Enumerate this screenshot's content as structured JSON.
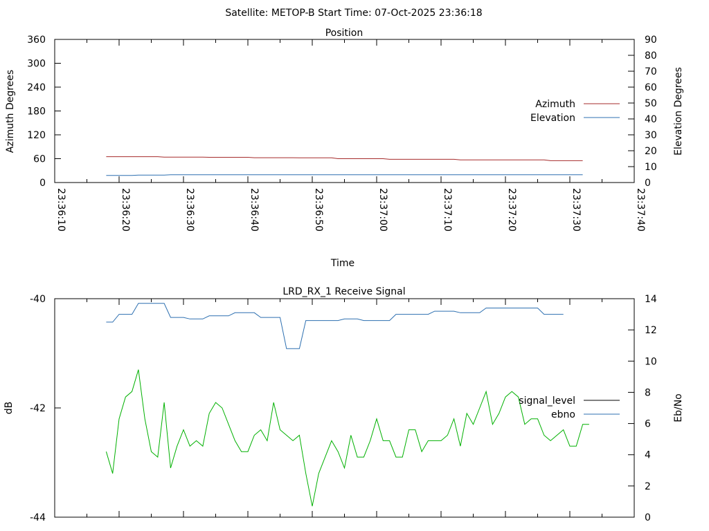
{
  "figure": {
    "title": "Satellite: METOP-B    Start Time: 07-Oct-2025 23:36:18"
  },
  "chart_data": [
    {
      "type": "line",
      "title": "Position",
      "xlabel": "Time",
      "ylabel": "Azimuth Degrees",
      "y2label": "Elevation Degrees",
      "x_range": [
        "23:36:10",
        "23:37:40"
      ],
      "x_tick_labels": [
        "23:36:10",
        "23:36:20",
        "23:36:30",
        "23:36:40",
        "23:36:50",
        "23:37:00",
        "23:37:10",
        "23:37:20",
        "23:37:30",
        "23:37:40"
      ],
      "ylim": [
        0,
        360
      ],
      "y_ticks": [
        0,
        60,
        120,
        180,
        240,
        300,
        360
      ],
      "y2lim": [
        0,
        90
      ],
      "y2_ticks": [
        0,
        10,
        20,
        30,
        40,
        50,
        60,
        70,
        80,
        90
      ],
      "legend_position": "right",
      "grid": false,
      "series": [
        {
          "name": "Azimuth",
          "axis": "left",
          "color": "#a52a2a",
          "x": [
            "23:36:18",
            "23:36:26",
            "23:36:27",
            "23:36:33",
            "23:36:34",
            "23:36:40",
            "23:36:41",
            "23:36:47",
            "23:36:48",
            "23:36:53",
            "23:36:54",
            "23:37:01",
            "23:37:02",
            "23:37:12",
            "23:37:13",
            "23:37:26",
            "23:37:27",
            "23:37:32"
          ],
          "values": [
            65,
            65,
            64,
            64,
            63.5,
            63.5,
            62.5,
            62.5,
            62,
            62,
            60,
            60,
            58.5,
            58.5,
            57,
            57,
            55,
            55
          ]
        },
        {
          "name": "Elevation",
          "axis": "right",
          "color": "#2c6fb0",
          "x": [
            "23:36:18",
            "23:36:22",
            "23:36:23",
            "23:36:27",
            "23:36:28",
            "23:37:32"
          ],
          "values": [
            4.5,
            4.5,
            4.7,
            4.7,
            4.9,
            4.9
          ]
        }
      ]
    },
    {
      "type": "line",
      "title": "LRD_RX_1 Receive Signal",
      "xlabel": "",
      "ylabel": "dB",
      "y2label": "Eb/No",
      "x_range": [
        "23:36:10",
        "23:37:40"
      ],
      "ylim": [
        -44,
        -40
      ],
      "y_ticks": [
        -44,
        -42,
        -40
      ],
      "y2lim": [
        0,
        14
      ],
      "y2_ticks": [
        0,
        2,
        4,
        6,
        8,
        10,
        12,
        14
      ],
      "legend_position": "right",
      "grid": false,
      "series": [
        {
          "name": "signal_level",
          "axis": "left",
          "color": "#00b000",
          "x": [
            "23:36:18",
            "23:36:19",
            "23:36:20",
            "23:36:21",
            "23:36:22",
            "23:36:23",
            "23:36:24",
            "23:36:25",
            "23:36:26",
            "23:36:27",
            "23:36:28",
            "23:36:29",
            "23:36:30",
            "23:36:31",
            "23:36:32",
            "23:36:33",
            "23:36:34",
            "23:36:35",
            "23:36:36",
            "23:36:37",
            "23:36:38",
            "23:36:39",
            "23:36:40",
            "23:36:41",
            "23:36:42",
            "23:36:43",
            "23:36:44",
            "23:36:45",
            "23:36:46",
            "23:36:47",
            "23:36:48",
            "23:36:49",
            "23:36:50",
            "23:36:51",
            "23:36:52",
            "23:36:53",
            "23:36:54",
            "23:36:55",
            "23:36:56",
            "23:36:57",
            "23:36:58",
            "23:36:59",
            "23:37:00",
            "23:37:01",
            "23:37:02",
            "23:37:03",
            "23:37:04",
            "23:37:05",
            "23:37:06",
            "23:37:07",
            "23:37:08",
            "23:37:09",
            "23:37:10",
            "23:37:11",
            "23:37:12",
            "23:37:13",
            "23:37:14",
            "23:37:15",
            "23:37:16",
            "23:37:17",
            "23:37:18",
            "23:37:19",
            "23:37:20",
            "23:37:21",
            "23:37:22",
            "23:37:23",
            "23:37:24",
            "23:37:25",
            "23:37:26",
            "23:37:27",
            "23:37:28",
            "23:37:29",
            "23:37:30",
            "23:37:31",
            "23:37:32",
            "23:37:33"
          ],
          "values": [
            -42.8,
            -43.2,
            -42.2,
            -41.8,
            -41.7,
            -41.3,
            -42.2,
            -42.8,
            -42.9,
            -41.9,
            -43.1,
            -42.7,
            -42.4,
            -42.7,
            -42.6,
            -42.7,
            -42.1,
            -41.9,
            -42.0,
            -42.3,
            -42.6,
            -42.8,
            -42.8,
            -42.5,
            -42.4,
            -42.6,
            -41.9,
            -42.4,
            -42.5,
            -42.6,
            -42.5,
            -43.2,
            -43.8,
            -43.2,
            -42.9,
            -42.6,
            -42.8,
            -43.1,
            -42.5,
            -42.9,
            -42.9,
            -42.6,
            -42.2,
            -42.6,
            -42.6,
            -42.9,
            -42.9,
            -42.4,
            -42.4,
            -42.8,
            -42.6,
            -42.6,
            -42.6,
            -42.5,
            -42.2,
            -42.7,
            -42.1,
            -42.3,
            -42.0,
            -41.7,
            -42.3,
            -42.1,
            -41.8,
            -41.7,
            -41.8,
            -42.3,
            -42.2,
            -42.2,
            -42.5,
            -42.6,
            -42.5,
            -42.4,
            -42.7,
            -42.7,
            -42.3,
            -42.3
          ]
        },
        {
          "name": "ebno",
          "axis": "right",
          "color": "#2c6fb0",
          "x": [
            "23:36:18",
            "23:36:19",
            "23:36:20",
            "23:36:22",
            "23:36:23",
            "23:36:27",
            "23:36:28",
            "23:36:30",
            "23:36:31",
            "23:36:33",
            "23:36:34",
            "23:36:37",
            "23:36:38",
            "23:36:41",
            "23:36:42",
            "23:36:45",
            "23:36:46",
            "23:36:48",
            "23:36:49",
            "23:36:54",
            "23:36:55",
            "23:36:57",
            "23:36:58",
            "23:37:02",
            "23:37:03",
            "23:37:08",
            "23:37:09",
            "23:37:12",
            "23:37:13",
            "23:37:16",
            "23:37:17",
            "23:37:25",
            "23:37:26",
            "23:37:29"
          ],
          "values": [
            12.5,
            12.5,
            13.0,
            13.0,
            13.7,
            13.7,
            12.8,
            12.8,
            12.7,
            12.7,
            12.9,
            12.9,
            13.1,
            13.1,
            12.8,
            12.8,
            10.8,
            10.8,
            12.6,
            12.6,
            12.7,
            12.7,
            12.6,
            12.6,
            13.0,
            13.0,
            13.2,
            13.2,
            13.1,
            13.1,
            13.4,
            13.4,
            13.0,
            13.0
          ]
        }
      ]
    }
  ]
}
